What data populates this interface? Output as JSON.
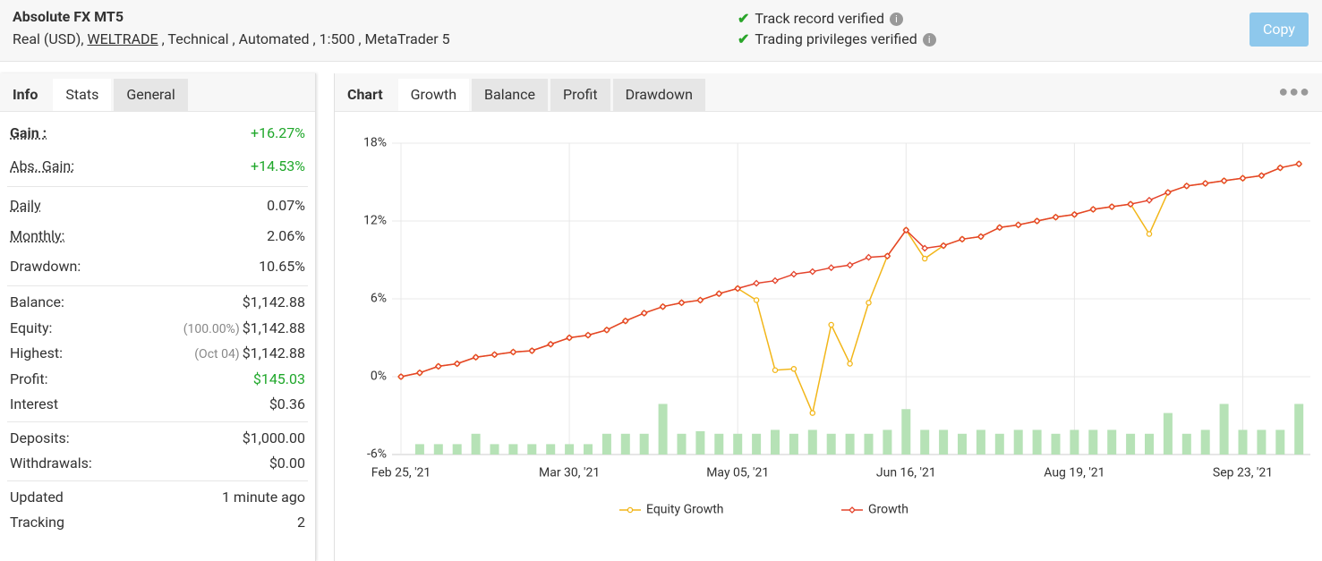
{
  "header": {
    "title": "Absolute FX MT5",
    "account": "Real (USD),",
    "broker": "WELTRADE",
    "details": ", Technical , Automated , 1:500 , MetaTrader 5",
    "verifications": [
      "Track record verified",
      "Trading privileges verified"
    ],
    "button": "Copy"
  },
  "left_tabs": [
    "Info",
    "Stats",
    "General"
  ],
  "stats": [
    [
      {
        "label": "Gain :",
        "value": "+16.27%"
      },
      {
        "label": "Abs. Gain:",
        "value": "+14.53%"
      }
    ],
    [
      {
        "label": "Daily",
        "value": "0.07%"
      },
      {
        "label": "Monthly:",
        "value": "2.06%"
      },
      {
        "label": "Drawdown:",
        "value": "10.65%"
      }
    ],
    [
      {
        "label": "Balance:",
        "value": "$1,142.88"
      },
      {
        "label": "Equity:",
        "note": "(100.00%)",
        "value": "$1,142.88"
      },
      {
        "label": "Highest:",
        "note": "(Oct 04)",
        "value": "$1,142.88"
      },
      {
        "label": "Profit:",
        "value": "$145.03"
      },
      {
        "label": "Interest",
        "value": "$0.36"
      }
    ],
    [
      {
        "label": "Deposits:",
        "value": "$1,000.00"
      },
      {
        "label": "Withdrawals:",
        "value": "$0.00"
      }
    ],
    [
      {
        "label": "Updated",
        "value": "1 minute ago"
      },
      {
        "label": "Tracking",
        "value": "2"
      }
    ]
  ],
  "chart_label": "Chart",
  "chart_tabs": [
    "Growth",
    "Balance",
    "Profit",
    "Drawdown"
  ],
  "chart_data": {
    "type": "line",
    "categories": [
      "Feb 25, '21",
      null,
      null,
      null,
      null,
      null,
      null,
      null,
      null,
      "Mar 30, '21",
      null,
      null,
      null,
      null,
      null,
      null,
      null,
      null,
      "May 05, '21",
      null,
      null,
      null,
      null,
      null,
      null,
      null,
      null,
      "Jun 16, '21",
      null,
      null,
      null,
      null,
      null,
      null,
      null,
      null,
      "Aug 19, '21",
      null,
      null,
      null,
      null,
      null,
      null,
      null,
      null,
      "Sep 23, '21",
      null,
      null,
      null
    ],
    "series": [
      {
        "name": "Equity Growth",
        "color": "#f2b619",
        "values": [
          0,
          0.3,
          0.8,
          1.0,
          1.5,
          1.7,
          1.9,
          2.0,
          2.5,
          3.0,
          3.2,
          3.6,
          4.3,
          4.9,
          5.4,
          5.7,
          5.9,
          6.4,
          6.8,
          5.9,
          0.5,
          0.6,
          -2.8,
          4.0,
          1.0,
          5.7,
          9.3,
          11.3,
          9.1,
          10.1,
          10.6,
          10.8,
          11.5,
          11.7,
          12.0,
          12.3,
          12.5,
          12.9,
          13.1,
          13.3,
          11.0,
          14.2,
          14.7,
          14.9,
          15.1,
          15.3,
          15.5,
          16.1,
          16.4
        ]
      },
      {
        "name": "Growth",
        "color": "#e4432b",
        "values": [
          0,
          0.3,
          0.8,
          1.0,
          1.5,
          1.7,
          1.9,
          2.0,
          2.5,
          3.0,
          3.2,
          3.6,
          4.3,
          4.9,
          5.4,
          5.7,
          5.9,
          6.4,
          6.8,
          7.2,
          7.4,
          7.9,
          8.1,
          8.4,
          8.6,
          9.2,
          9.3,
          11.3,
          9.9,
          10.1,
          10.6,
          10.8,
          11.5,
          11.7,
          12.0,
          12.3,
          12.5,
          12.9,
          13.1,
          13.3,
          13.6,
          14.2,
          14.7,
          14.9,
          15.1,
          15.3,
          15.5,
          16.1,
          16.4
        ]
      }
    ],
    "bars": {
      "color": "#b6e2b6",
      "values": [
        null,
        -5.2,
        -5.2,
        -5.2,
        -4.4,
        -5.2,
        -5.2,
        -5.2,
        -5.2,
        -5.2,
        -5.2,
        -4.4,
        -4.4,
        -4.4,
        -2.1,
        -4.4,
        -4.2,
        -4.4,
        -4.4,
        -4.4,
        -4.1,
        -4.4,
        -4.1,
        -4.4,
        -4.4,
        -4.4,
        -4.1,
        -2.5,
        -4.1,
        -4.1,
        -4.4,
        -4.1,
        -4.4,
        -4.1,
        -4.1,
        -4.4,
        -4.1,
        -4.1,
        -4.1,
        -4.4,
        -4.4,
        -2.8,
        -4.4,
        -4.1,
        -2.1,
        -4.1,
        -4.1,
        -4.1,
        -2.1
      ]
    },
    "ylim": [
      -6,
      18
    ],
    "yticks": [
      {
        "value": -6,
        "label": "-6%"
      },
      {
        "value": 0,
        "label": "0%"
      },
      {
        "value": 6,
        "label": "6%"
      },
      {
        "value": 12,
        "label": "12%"
      },
      {
        "value": 18,
        "label": "18%"
      }
    ],
    "grid": true
  }
}
